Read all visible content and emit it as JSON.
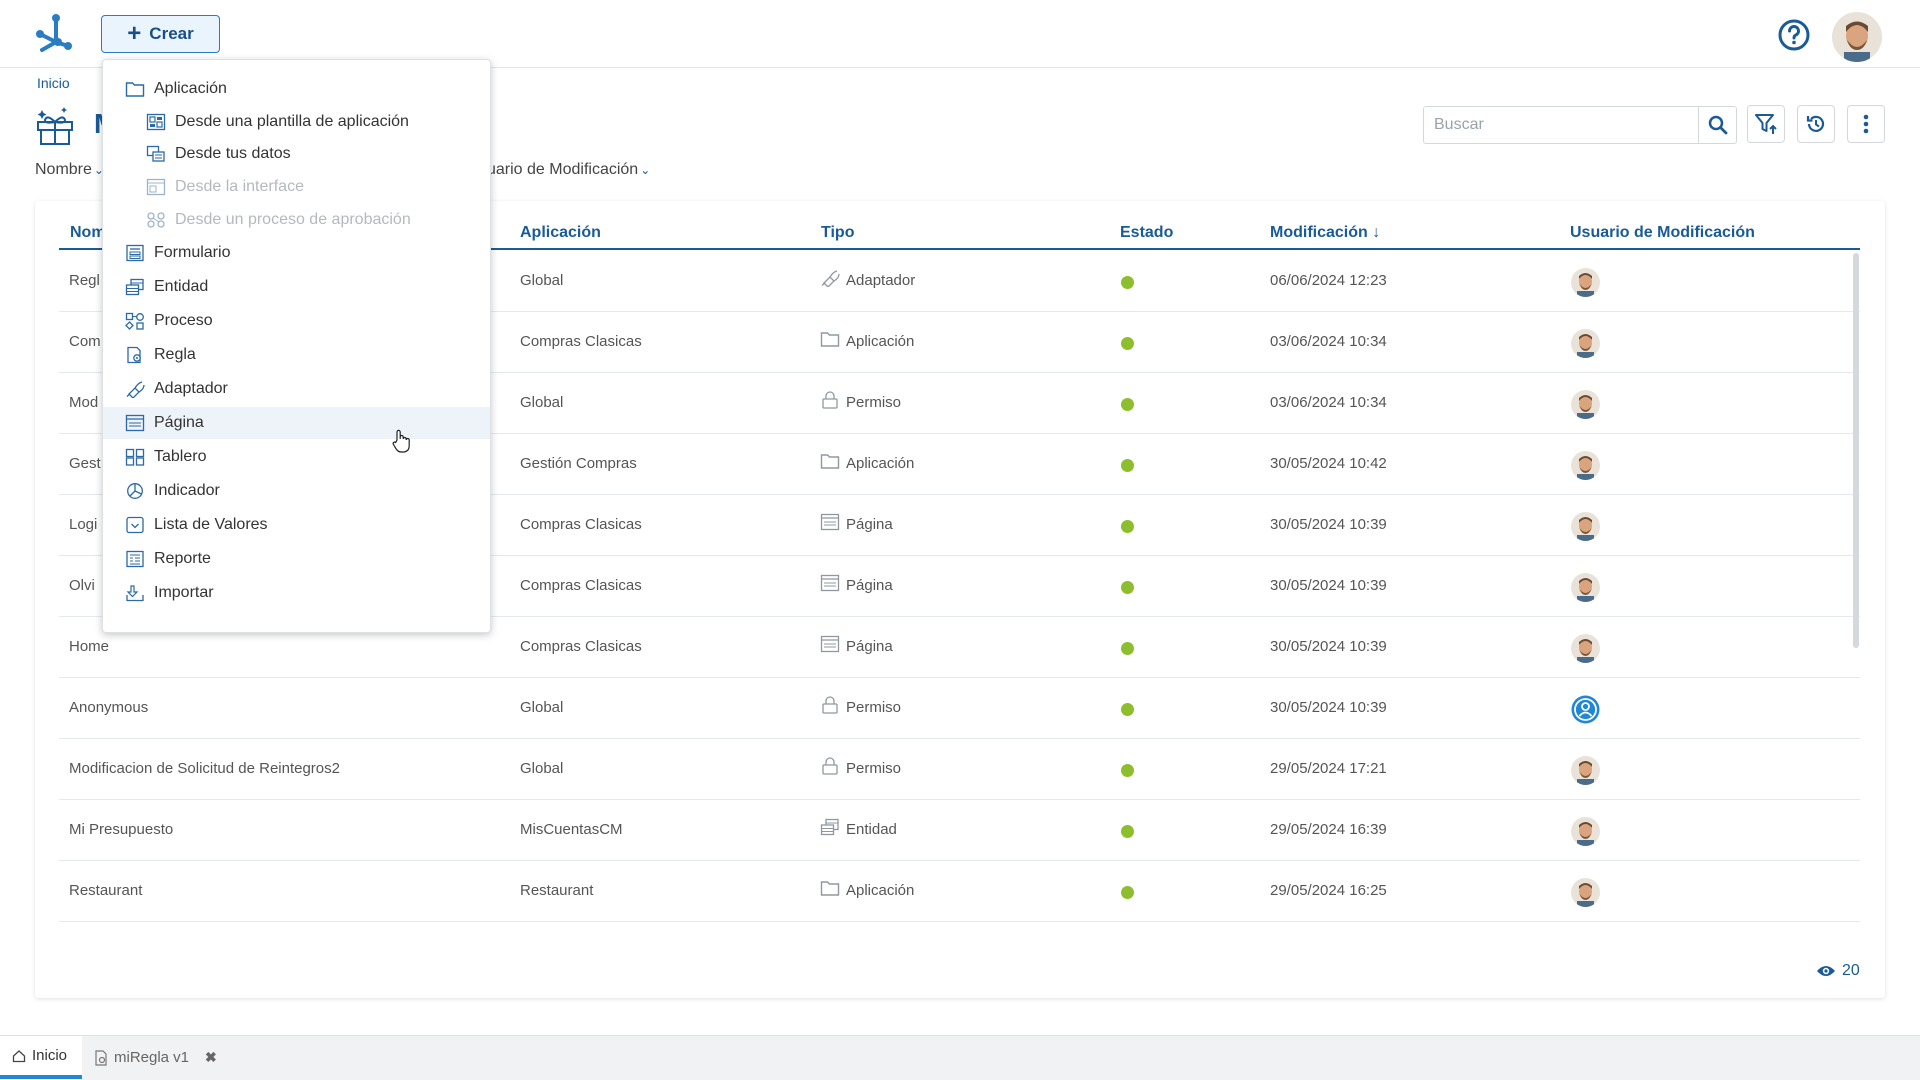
{
  "header": {
    "create_label": "Crear"
  },
  "breadcrumb": "Inicio",
  "page": {
    "title": "M"
  },
  "search": {
    "placeholder": "Buscar",
    "value": ""
  },
  "filters": {
    "nombre": "Nombre",
    "usuario": "uario de Modificación"
  },
  "table": {
    "headers": {
      "nombre": "Nom",
      "aplicacion": "Aplicación",
      "tipo": "Tipo",
      "estado": "Estado",
      "modificacion": "Modificación",
      "usuario": "Usuario de Modificación"
    },
    "rows": [
      {
        "nombre": "Regl",
        "aplicacion": "Global",
        "tipo": "Adaptador",
        "tipo_icon": "adapter-icon",
        "fecha": "06/06/2024 12:23",
        "user": "user-photo"
      },
      {
        "nombre": "Com",
        "aplicacion": "Compras Clasicas",
        "tipo": "Aplicación",
        "tipo_icon": "folder-icon",
        "fecha": "03/06/2024 10:34",
        "user": "user-photo"
      },
      {
        "nombre": "Mod",
        "aplicacion": "Global",
        "tipo": "Permiso",
        "tipo_icon": "lock-icon",
        "fecha": "03/06/2024 10:34",
        "user": "user-photo"
      },
      {
        "nombre": "Gest",
        "aplicacion": "Gestión Compras",
        "tipo": "Aplicación",
        "tipo_icon": "folder-icon",
        "fecha": "30/05/2024 10:42",
        "user": "user-photo"
      },
      {
        "nombre": "Logi",
        "aplicacion": "Compras Clasicas",
        "tipo": "Página",
        "tipo_icon": "page-icon",
        "fecha": "30/05/2024 10:39",
        "user": "user-photo"
      },
      {
        "nombre": "Olvi",
        "aplicacion": "Compras Clasicas",
        "tipo": "Página",
        "tipo_icon": "page-icon",
        "fecha": "30/05/2024 10:39",
        "user": "user-photo"
      },
      {
        "nombre": "Home",
        "aplicacion": "Compras Clasicas",
        "tipo": "Página",
        "tipo_icon": "page-icon",
        "fecha": "30/05/2024 10:39",
        "user": "user-photo"
      },
      {
        "nombre": "Anonymous",
        "aplicacion": "Global",
        "tipo": "Permiso",
        "tipo_icon": "lock-icon",
        "fecha": "30/05/2024 10:39",
        "user": "anonymous-icon"
      },
      {
        "nombre": "Modificacion de Solicitud de Reintegros2",
        "aplicacion": "Global",
        "tipo": "Permiso",
        "tipo_icon": "lock-icon",
        "fecha": "29/05/2024 17:21",
        "user": "user-photo"
      },
      {
        "nombre": "Mi Presupuesto",
        "aplicacion": "MisCuentasCM",
        "tipo": "Entidad",
        "tipo_icon": "entity-icon",
        "fecha": "29/05/2024 16:39",
        "user": "user-photo"
      },
      {
        "nombre": "Restaurant",
        "aplicacion": "Restaurant",
        "tipo": "Aplicación",
        "tipo_icon": "folder-icon",
        "fecha": "29/05/2024 16:25",
        "user": "user-photo"
      }
    ],
    "status_color": "#8dbe2d"
  },
  "count": "20",
  "create_menu": [
    {
      "label": "Aplicación",
      "icon": "folder-icon",
      "indent": false,
      "disabled": false
    },
    {
      "label": "Desde una plantilla de aplicación",
      "icon": "template-icon",
      "indent": true,
      "disabled": false
    },
    {
      "label": "Desde tus datos",
      "icon": "data-icon",
      "indent": true,
      "disabled": false
    },
    {
      "label": "Desde la interface",
      "icon": "interface-icon",
      "indent": true,
      "disabled": true
    },
    {
      "label": "Desde un proceso de aprobación",
      "icon": "approval-icon",
      "indent": true,
      "disabled": true
    },
    {
      "label": "Formulario",
      "icon": "form-icon",
      "indent": false,
      "disabled": false
    },
    {
      "label": "Entidad",
      "icon": "entity-icon",
      "indent": false,
      "disabled": false
    },
    {
      "label": "Proceso",
      "icon": "process-icon",
      "indent": false,
      "disabled": false
    },
    {
      "label": "Regla",
      "icon": "rule-icon",
      "indent": false,
      "disabled": false
    },
    {
      "label": "Adaptador",
      "icon": "adapter-icon",
      "indent": false,
      "disabled": false
    },
    {
      "label": "Página",
      "icon": "page-icon",
      "indent": false,
      "disabled": false,
      "hover": true
    },
    {
      "label": "Tablero",
      "icon": "dashboard-icon",
      "indent": false,
      "disabled": false
    },
    {
      "label": "Indicador",
      "icon": "indicator-icon",
      "indent": false,
      "disabled": false
    },
    {
      "label": "Lista de Valores",
      "icon": "value-list-icon",
      "indent": false,
      "disabled": false
    },
    {
      "label": "Reporte",
      "icon": "report-icon",
      "indent": false,
      "disabled": false
    },
    {
      "label": "Importar",
      "icon": "import-icon",
      "indent": false,
      "disabled": false
    }
  ],
  "bottom_tabs": [
    {
      "label": "Inicio",
      "icon": "home-icon",
      "active": true
    },
    {
      "label": "miRegla v1",
      "icon": "rule-icon",
      "active": false,
      "closable": true
    }
  ],
  "colors": {
    "accent": "#1a5a96",
    "active_tab": "#2286d6"
  }
}
